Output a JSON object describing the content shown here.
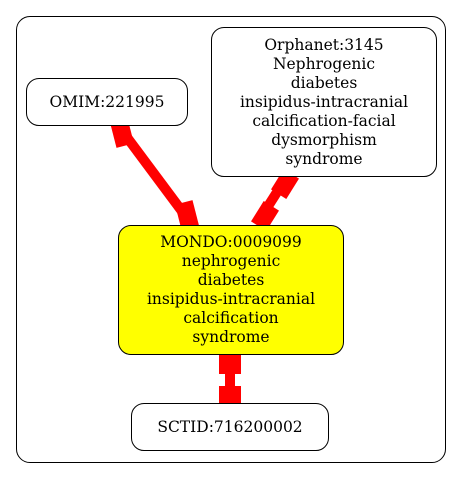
{
  "colors": {
    "edge": "#ff0000",
    "center_fill": "#ffff00",
    "node_fill": "#ffffff",
    "border": "#000000"
  },
  "nodes": {
    "omim": {
      "lines": [
        "OMIM:221995"
      ]
    },
    "orphanet": {
      "lines": [
        "Orphanet:3145",
        "Nephrogenic",
        "diabetes",
        "insipidus-intracranial",
        "calcification-facial",
        "dysmorphism",
        "syndrome"
      ]
    },
    "mondo": {
      "lines": [
        "MONDO:0009099",
        "nephrogenic",
        "diabetes",
        "insipidus-intracranial",
        "calcification",
        "syndrome"
      ]
    },
    "sctid": {
      "lines": [
        "SCTID:716200002"
      ]
    }
  }
}
